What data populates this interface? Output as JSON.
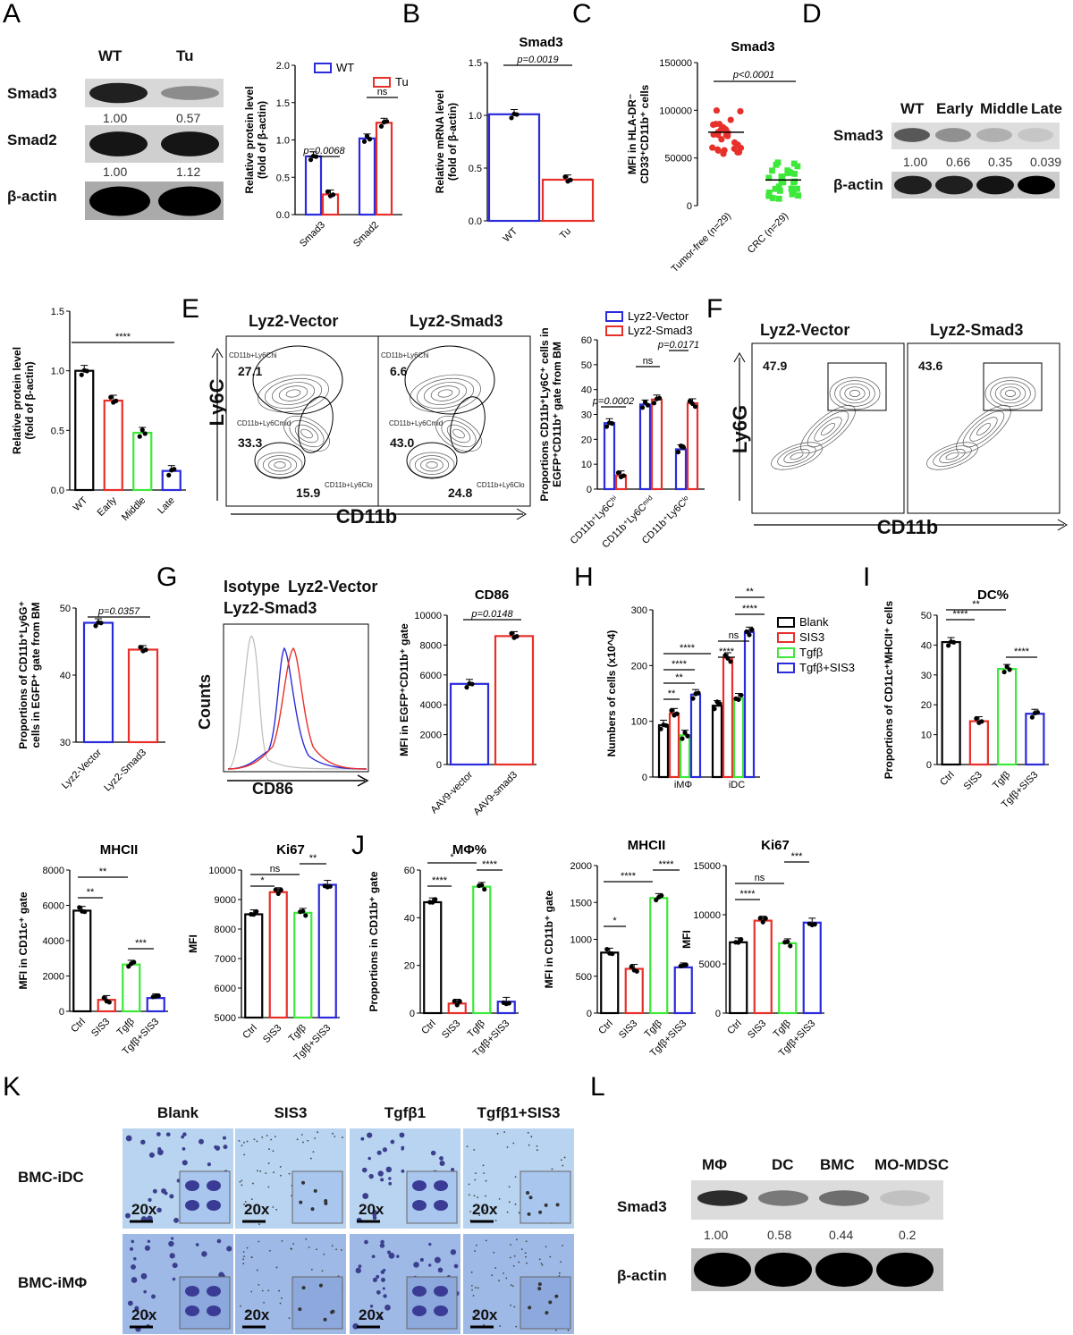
{
  "panel_labels": [
    "A",
    "B",
    "C",
    "D",
    "E",
    "F",
    "G",
    "H",
    "I",
    "J",
    "K",
    "L"
  ],
  "blots": {
    "A": {
      "columns": [
        "WT",
        "Tu"
      ],
      "rows": [
        "Smad3",
        "Smad2",
        "β-actin"
      ],
      "quant_smad3": [
        "1.00",
        "0.57"
      ],
      "quant_smad2": [
        "1.00",
        "1.12"
      ]
    },
    "D": {
      "columns": [
        "WT",
        "Early",
        "Middle",
        "Late"
      ],
      "rows": [
        "Smad3",
        "β-actin"
      ],
      "quant": [
        "1.00",
        "0.66",
        "0.35",
        "0.039"
      ]
    },
    "L": {
      "columns": [
        "MΦ",
        "DC",
        "BMC",
        "MO-MDSC"
      ],
      "rows": [
        "Smad3",
        "β-actin"
      ],
      "quant": [
        "1.00",
        "0.58",
        "0.44",
        "0.2"
      ]
    }
  },
  "flow": {
    "E": {
      "titles": [
        "Lyz2-Vector",
        "Lyz2-Smad3"
      ],
      "xlabel": "CD11b",
      "ylabel": "Ly6C",
      "gates": [
        "CD11b+Ly6Chi",
        "CD11b+Ly6Cmid",
        "CD11b+Ly6Clo"
      ],
      "vector_values": [
        "27.1",
        "33.3",
        "15.9"
      ],
      "smad3_values": [
        "6.6",
        "43.0",
        "24.8"
      ]
    },
    "F": {
      "titles": [
        "Lyz2-Vector",
        "Lyz2-Smad3"
      ],
      "xlabel": "CD11b",
      "ylabel": "Ly6G",
      "values": [
        "47.9",
        "43.6"
      ]
    },
    "G": {
      "legend": [
        "Isotype",
        "Lyz2-Vector",
        "Lyz2-Smad3"
      ],
      "xlabel": "CD86",
      "ylabel": "Counts"
    }
  },
  "micro": {
    "columns": [
      "Blank",
      "SIS3",
      "Tgfβ1",
      "Tgfβ1+SIS3"
    ],
    "rows": [
      "BMC-iDC",
      "BMC-iMΦ"
    ],
    "mag": "20x"
  },
  "colors": {
    "blk": "#000000",
    "red": "#e8302a",
    "green": "#3ee83a",
    "blue": "#2b2bdc"
  },
  "chart_data": [
    {
      "id": "A-bar",
      "type": "bar",
      "title": "",
      "ylabel": "Relative protein level\n(fold of β-actin)",
      "categories": [
        "Smad3",
        "Smad2"
      ],
      "ylim": [
        0,
        2.0
      ],
      "yticks": [
        "0.0",
        "0.5",
        "1.0",
        "1.5",
        "2.0"
      ],
      "series": [
        {
          "name": "WT",
          "color": "blue",
          "values": [
            0.78,
            1.02
          ]
        },
        {
          "name": "Tu",
          "color": "red",
          "values": [
            0.27,
            1.23
          ]
        }
      ],
      "annotations": [
        "p=0.0068",
        "ns"
      ]
    },
    {
      "id": "B-bar",
      "type": "bar",
      "title": "Smad3",
      "ylabel": "Relative mRNA level\n(fold of β-actin)",
      "categories": [
        "WT",
        "Tu"
      ],
      "ylim": [
        0,
        1.5
      ],
      "yticks": [
        "0.0",
        "0.5",
        "1.0",
        "1.5"
      ],
      "values": [
        1.01,
        0.39
      ],
      "colors": [
        "blue",
        "red"
      ],
      "annotations": [
        "p=0.0019"
      ]
    },
    {
      "id": "C-scatter",
      "type": "scatter",
      "title": "Smad3",
      "ylabel": "MFI  in HLA-DR⁻\nCD33⁺CD11b⁺ cells",
      "categories": [
        "Tumor-free (n=29)",
        "CRC (n=29)"
      ],
      "ylim": [
        0,
        150000
      ],
      "yticks": [
        "0",
        "50000",
        "100000",
        "150000"
      ],
      "means": [
        77000,
        27000
      ],
      "annotations": [
        "p<0.0001"
      ]
    },
    {
      "id": "D-bar",
      "type": "bar",
      "title": "",
      "ylabel": "Relative protein level\n(fold of β-actin)",
      "categories": [
        "WT",
        "Early",
        "Middle",
        "Late"
      ],
      "ylim": [
        0,
        1.5
      ],
      "yticks": [
        "0.0",
        "0.5",
        "1.0",
        "1.5"
      ],
      "values": [
        1.0,
        0.75,
        0.48,
        0.16
      ],
      "colors": [
        "blk",
        "red",
        "green",
        "blue"
      ],
      "annotations": [
        "****"
      ]
    },
    {
      "id": "E-bar",
      "type": "bar",
      "title": "",
      "ylabel": "Proportions CD11b⁺Ly6C⁺ cells in\nEGFP⁺CD11b⁺ gate from BM",
      "categories": [
        "CD11b⁺Ly6Cʰⁱ",
        "CD11b⁺Ly6Cᵐⁱᵈ",
        "CD11b⁺Ly6Cˡᵒ"
      ],
      "ylim": [
        0,
        60
      ],
      "yticks": [
        "0",
        "10",
        "20",
        "30",
        "40",
        "50",
        "60"
      ],
      "series": [
        {
          "name": "Lyz2-Vector",
          "color": "blue",
          "values": [
            26.5,
            34,
            16
          ]
        },
        {
          "name": "Lyz2-Smad3",
          "color": "red",
          "values": [
            5.5,
            36,
            34.5
          ]
        }
      ],
      "annotations": [
        "p=0.0002",
        "ns",
        "p=0.0171"
      ]
    },
    {
      "id": "F-bar",
      "type": "bar",
      "title": "",
      "ylabel": "Proportions of CD11b⁺Ly6G⁺\ncells in EGFP⁺ gate from BM",
      "categories": [
        "Lyz2-Vector",
        "Lyz2-Smad3"
      ],
      "ylim": [
        30,
        50
      ],
      "yticks": [
        "30",
        "40",
        "50"
      ],
      "values": [
        47.8,
        43.8
      ],
      "colors": [
        "blue",
        "red"
      ],
      "annotations": [
        "p=0.0357"
      ]
    },
    {
      "id": "G-bar",
      "type": "bar",
      "title": "CD86",
      "ylabel": "MFI in EGFP⁺CD11b⁺ gate",
      "categories": [
        "AAV9-vector",
        "AAV9-smad3"
      ],
      "ylim": [
        0,
        10000
      ],
      "yticks": [
        "0",
        "2000",
        "4000",
        "6000",
        "8000",
        "10000"
      ],
      "values": [
        5400,
        8600
      ],
      "colors": [
        "blue",
        "red"
      ],
      "annotations": [
        "p=0.0148"
      ]
    },
    {
      "id": "H-bar",
      "type": "bar",
      "title": "",
      "ylabel": "Numbers of cells (x10^4)",
      "categories": [
        "iMΦ",
        "iDC"
      ],
      "ylim": [
        0,
        300
      ],
      "yticks": [
        "0",
        "100",
        "200",
        "300"
      ],
      "series": [
        {
          "name": "Blank",
          "color": "blk",
          "values": [
            93,
            128
          ]
        },
        {
          "name": "SIS3",
          "color": "red",
          "values": [
            114,
            214
          ]
        },
        {
          "name": "Tgfβ",
          "color": "green",
          "values": [
            75,
            141
          ]
        },
        {
          "name": "Tgfβ+SIS3",
          "color": "blue",
          "values": [
            148,
            260
          ]
        }
      ],
      "annotations": [
        "**",
        "**",
        "****",
        "****",
        "****",
        "ns",
        "****",
        "**"
      ]
    },
    {
      "id": "I-bar",
      "type": "bar",
      "title": "DC%",
      "ylabel": "Proportions of CD11c⁺MHCII⁺ cells",
      "categories": [
        "Ctrl",
        "SIS3",
        "Tgfβ",
        "Tgfβ+SIS3"
      ],
      "ylim": [
        0,
        50
      ],
      "yticks": [
        "0",
        "10",
        "20",
        "30",
        "40",
        "50"
      ],
      "values": [
        41,
        14.5,
        32,
        17
      ],
      "colors": [
        "blk",
        "red",
        "green",
        "blue"
      ],
      "annotations": [
        "****",
        "**",
        "****"
      ]
    },
    {
      "id": "MHCII-I",
      "type": "bar",
      "title": "MHCII",
      "ylabel": "MFI in CD11c⁺ gate",
      "categories": [
        "Ctrl",
        "SIS3",
        "Tgfβ",
        "Tgfβ+SIS3"
      ],
      "ylim": [
        0,
        8000
      ],
      "yticks": [
        "0",
        "2000",
        "4000",
        "6000",
        "8000"
      ],
      "values": [
        5700,
        650,
        2650,
        750
      ],
      "colors": [
        "blk",
        "red",
        "green",
        "blue"
      ],
      "annotations": [
        "**",
        "**",
        "***"
      ]
    },
    {
      "id": "Ki67-I",
      "type": "bar",
      "title": "Ki67",
      "ylabel": "MFI",
      "categories": [
        "Ctrl",
        "SIS3",
        "Tgfβ",
        "Tgfβ+SIS3"
      ],
      "ylim": [
        5000,
        10000
      ],
      "yticks": [
        "5000",
        "6000",
        "7000",
        "8000",
        "9000",
        "10000"
      ],
      "values": [
        8500,
        9250,
        8550,
        9500
      ],
      "colors": [
        "blk",
        "red",
        "green",
        "blue"
      ],
      "annotations": [
        "*",
        "ns",
        "**"
      ]
    },
    {
      "id": "J-mphi",
      "type": "bar",
      "title": "MΦ%",
      "ylabel": "Proportions in CD11b⁺ gate",
      "categories": [
        "Ctrl",
        "SIS3",
        "Tgfβ",
        "Tgfβ+SIS3"
      ],
      "ylim": [
        0,
        60
      ],
      "yticks": [
        "0",
        "20",
        "40",
        "60"
      ],
      "values": [
        46.5,
        4,
        53,
        4.8
      ],
      "colors": [
        "blk",
        "red",
        "green",
        "blue"
      ],
      "annotations": [
        "****",
        "*",
        "****"
      ]
    },
    {
      "id": "J-MHCII",
      "type": "bar",
      "title": "MHCII",
      "ylabel": "MFI in CD11b⁺ gate",
      "categories": [
        "Ctrl",
        "SIS3",
        "Tgfβ",
        "Tgfβ+SIS3"
      ],
      "ylim": [
        0,
        2000
      ],
      "yticks": [
        "0",
        "500",
        "1000",
        "1500",
        "2000"
      ],
      "values": [
        820,
        600,
        1560,
        620
      ],
      "colors": [
        "blk",
        "red",
        "green",
        "blue"
      ],
      "annotations": [
        "*",
        "****",
        "****"
      ]
    },
    {
      "id": "J-Ki67",
      "type": "bar",
      "title": "Ki67",
      "ylabel": "MFI",
      "categories": [
        "Ctrl",
        "SIS3",
        "Tgfβ",
        "Tgfβ+SIS3"
      ],
      "ylim": [
        0,
        15000
      ],
      "yticks": [
        "0",
        "5000",
        "10000",
        "15000"
      ],
      "values": [
        7200,
        9400,
        7100,
        9200
      ],
      "colors": [
        "blk",
        "red",
        "green",
        "blue"
      ],
      "annotations": [
        "****",
        "ns",
        "***"
      ]
    }
  ]
}
